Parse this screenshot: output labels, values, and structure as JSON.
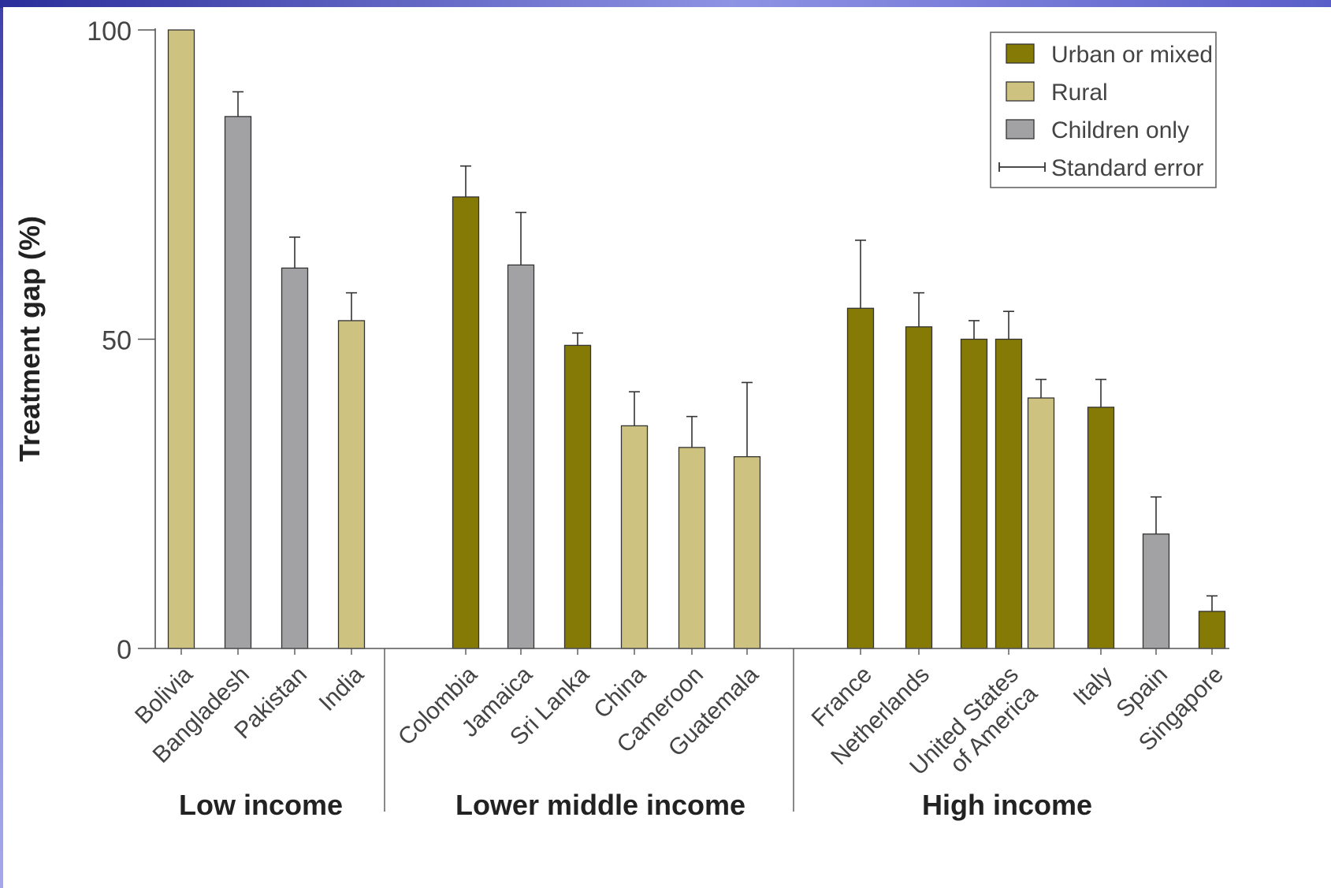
{
  "colors": {
    "urban": "#857a05",
    "rural": "#cdc27f",
    "children": "#a2a1a4",
    "axis": "#555555",
    "text": "#444444"
  },
  "chart_data": {
    "type": "bar",
    "ylabel": "Treatment gap (%)",
    "ylim": [
      0,
      100
    ],
    "yticks": [
      0,
      50,
      100
    ],
    "legend_position": "top-right",
    "legend": [
      {
        "key": "urban",
        "label": "Urban or mixed"
      },
      {
        "key": "rural",
        "label": "Rural"
      },
      {
        "key": "children",
        "label": "Children only"
      },
      {
        "key": "se",
        "label": "Standard error"
      }
    ],
    "groups": [
      "Low income",
      "Lower middle income",
      "High income"
    ],
    "bars": [
      {
        "category": "Bolivia",
        "group": "Low income",
        "type": "rural",
        "value": 100,
        "se": 0
      },
      {
        "category": "Bangladesh",
        "group": "Low income",
        "type": "children",
        "value": 86,
        "se": 4
      },
      {
        "category": "Pakistan",
        "group": "Low income",
        "type": "children",
        "value": 61.5,
        "se": 5
      },
      {
        "category": "India",
        "group": "Low income",
        "type": "rural",
        "value": 53,
        "se": 4.5
      },
      {
        "category": "Colombia",
        "group": "Lower middle income",
        "type": "urban",
        "value": 73,
        "se": 5
      },
      {
        "category": "Jamaica",
        "group": "Lower middle income",
        "type": "children",
        "value": 62,
        "se": 8.5
      },
      {
        "category": "Sri Lanka",
        "group": "Lower middle income",
        "type": "urban",
        "value": 49,
        "se": 2
      },
      {
        "category": "China",
        "group": "Lower middle income",
        "type": "rural",
        "value": 36,
        "se": 5.5
      },
      {
        "category": "Cameroon",
        "group": "Lower middle income",
        "type": "rural",
        "value": 32.5,
        "se": 5
      },
      {
        "category": "Guatemala",
        "group": "Lower middle income",
        "type": "rural",
        "value": 31,
        "se": 12
      },
      {
        "category": "France",
        "group": "High income",
        "type": "urban",
        "value": 55,
        "se": 11
      },
      {
        "category": "Netherlands",
        "group": "High income",
        "type": "urban",
        "value": 52,
        "se": 5.5
      },
      {
        "category": "United States of America",
        "group": "High income",
        "type": "urban",
        "value": 50,
        "se": 3
      },
      {
        "category": "United States of America",
        "group": "High income",
        "type": "urban",
        "value": 50,
        "se": 4.5
      },
      {
        "category": "United States of America",
        "group": "High income",
        "type": "rural",
        "value": 40.5,
        "se": 3
      },
      {
        "category": "Italy",
        "group": "High income",
        "type": "urban",
        "value": 39,
        "se": 4.5
      },
      {
        "category": "Spain",
        "group": "High income",
        "type": "children",
        "value": 18.5,
        "se": 6
      },
      {
        "category": "Singapore",
        "group": "High income",
        "type": "urban",
        "value": 6,
        "se": 2.5
      }
    ],
    "xlabels": [
      [
        "Bolivia"
      ],
      [
        "Bangladesh"
      ],
      [
        "Pakistan"
      ],
      [
        "India"
      ],
      [
        "Colombia"
      ],
      [
        "Jamaica"
      ],
      [
        "Sri Lanka"
      ],
      [
        "China"
      ],
      [
        "Cameroon"
      ],
      [
        "Guatemala"
      ],
      [
        "France"
      ],
      [
        "Netherlands"
      ],
      [
        "United States",
        "of America"
      ],
      [
        "Italy"
      ],
      [
        "Spain"
      ],
      [
        "Singapore"
      ]
    ]
  }
}
